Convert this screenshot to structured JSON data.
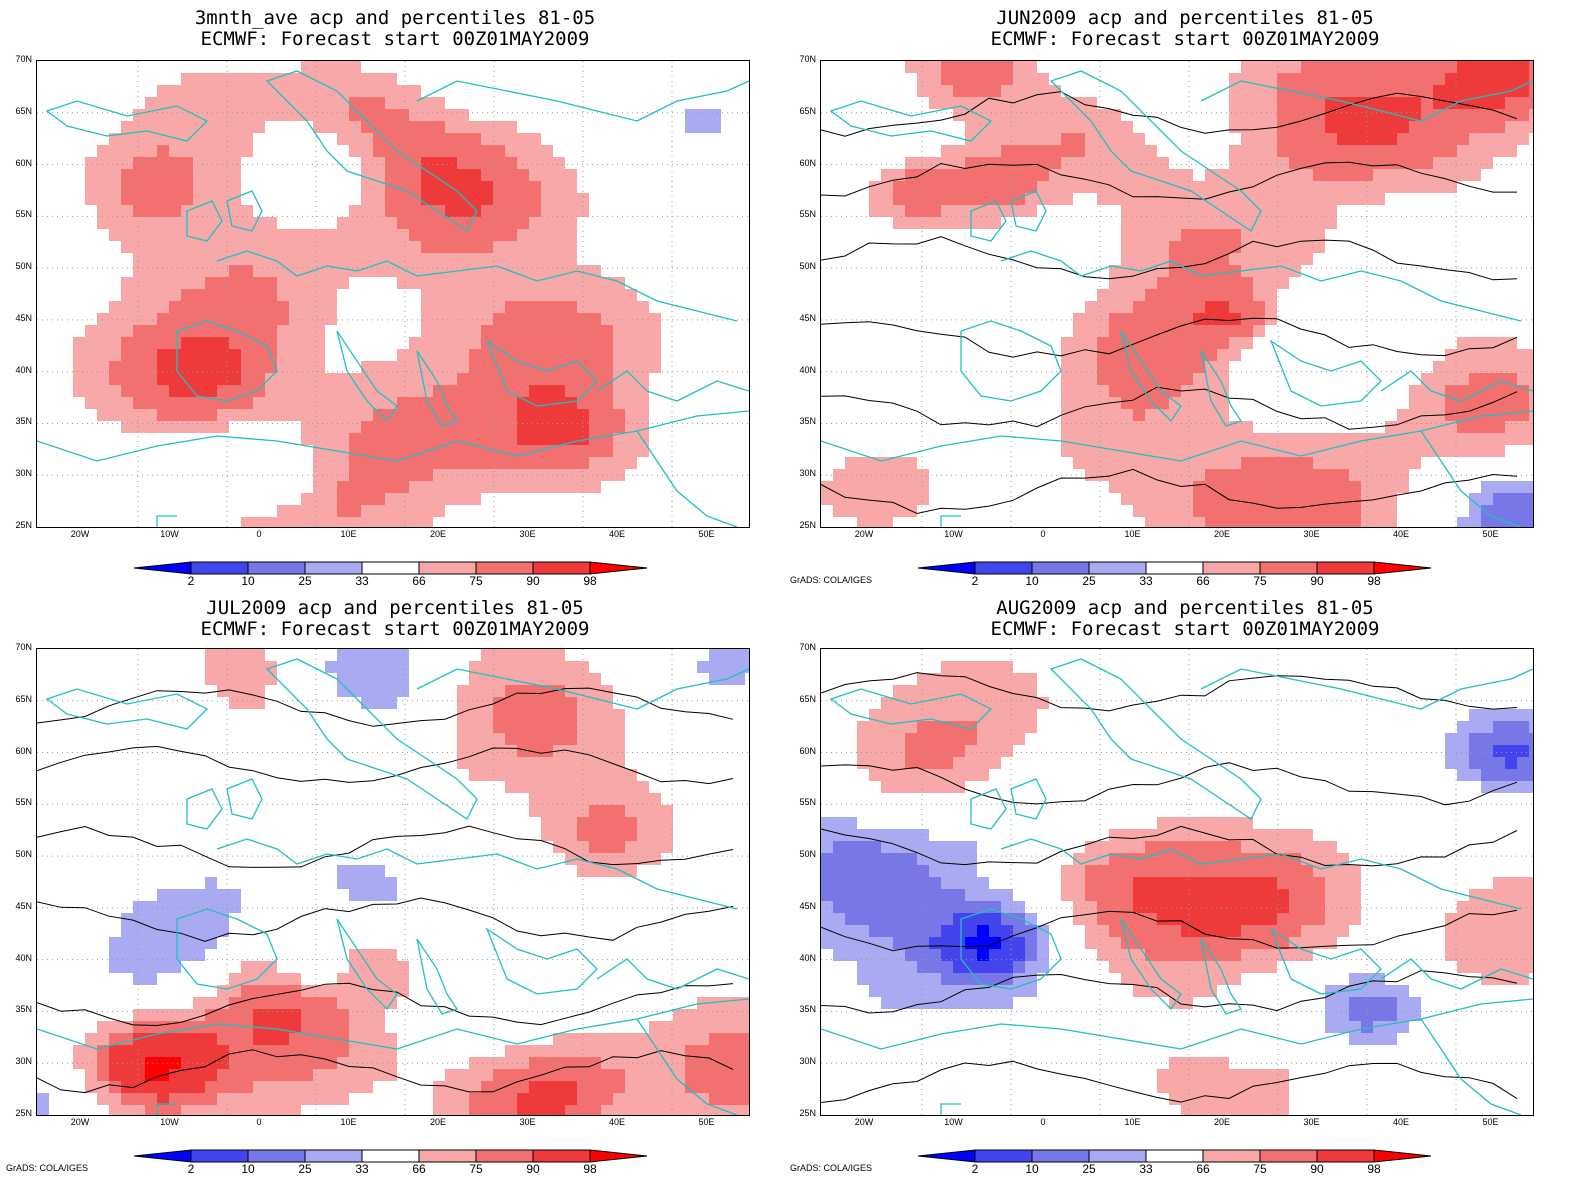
{
  "panels": [
    {
      "title_line1": "3mnth_ave acp and percentiles 81-05",
      "title_line2": "ECMWF: Forecast start 00Z01MAY2009",
      "credit": ""
    },
    {
      "title_line1": "JUN2009 acp and percentiles 81-05",
      "title_line2": "ECMWF: Forecast start 00Z01MAY2009",
      "credit": "GrADS: COLA/IGES"
    },
    {
      "title_line1": "JUL2009 acp and percentiles 81-05",
      "title_line2": "ECMWF: Forecast start 00Z01MAY2009",
      "credit": "GrADS: COLA/IGES"
    },
    {
      "title_line1": "AUG2009 acp and percentiles 81-05",
      "title_line2": "ECMWF: Forecast start 00Z01MAY2009",
      "credit": "GrADS: COLA/IGES"
    }
  ],
  "axes": {
    "lat_labels": [
      "70N",
      "65N",
      "60N",
      "55N",
      "50N",
      "45N",
      "40N",
      "35N",
      "30N",
      "25N"
    ],
    "lon_labels": [
      "20W",
      "10W",
      "0",
      "10E",
      "20E",
      "30E",
      "40E",
      "50E"
    ]
  },
  "colorbar": {
    "labels": [
      "2",
      "10",
      "25",
      "33",
      "66",
      "75",
      "90",
      "98"
    ],
    "colors": [
      "#0000ff",
      "#4444ee",
      "#7777e8",
      "#aaaaf2",
      "#ffffff",
      "#f8a8a8",
      "#f27070",
      "#ee3a3a",
      "#ff0000"
    ]
  },
  "map_colors": {
    "land_outline": "#20c0c0",
    "contour": "#000000",
    "grid": "#999999"
  }
}
